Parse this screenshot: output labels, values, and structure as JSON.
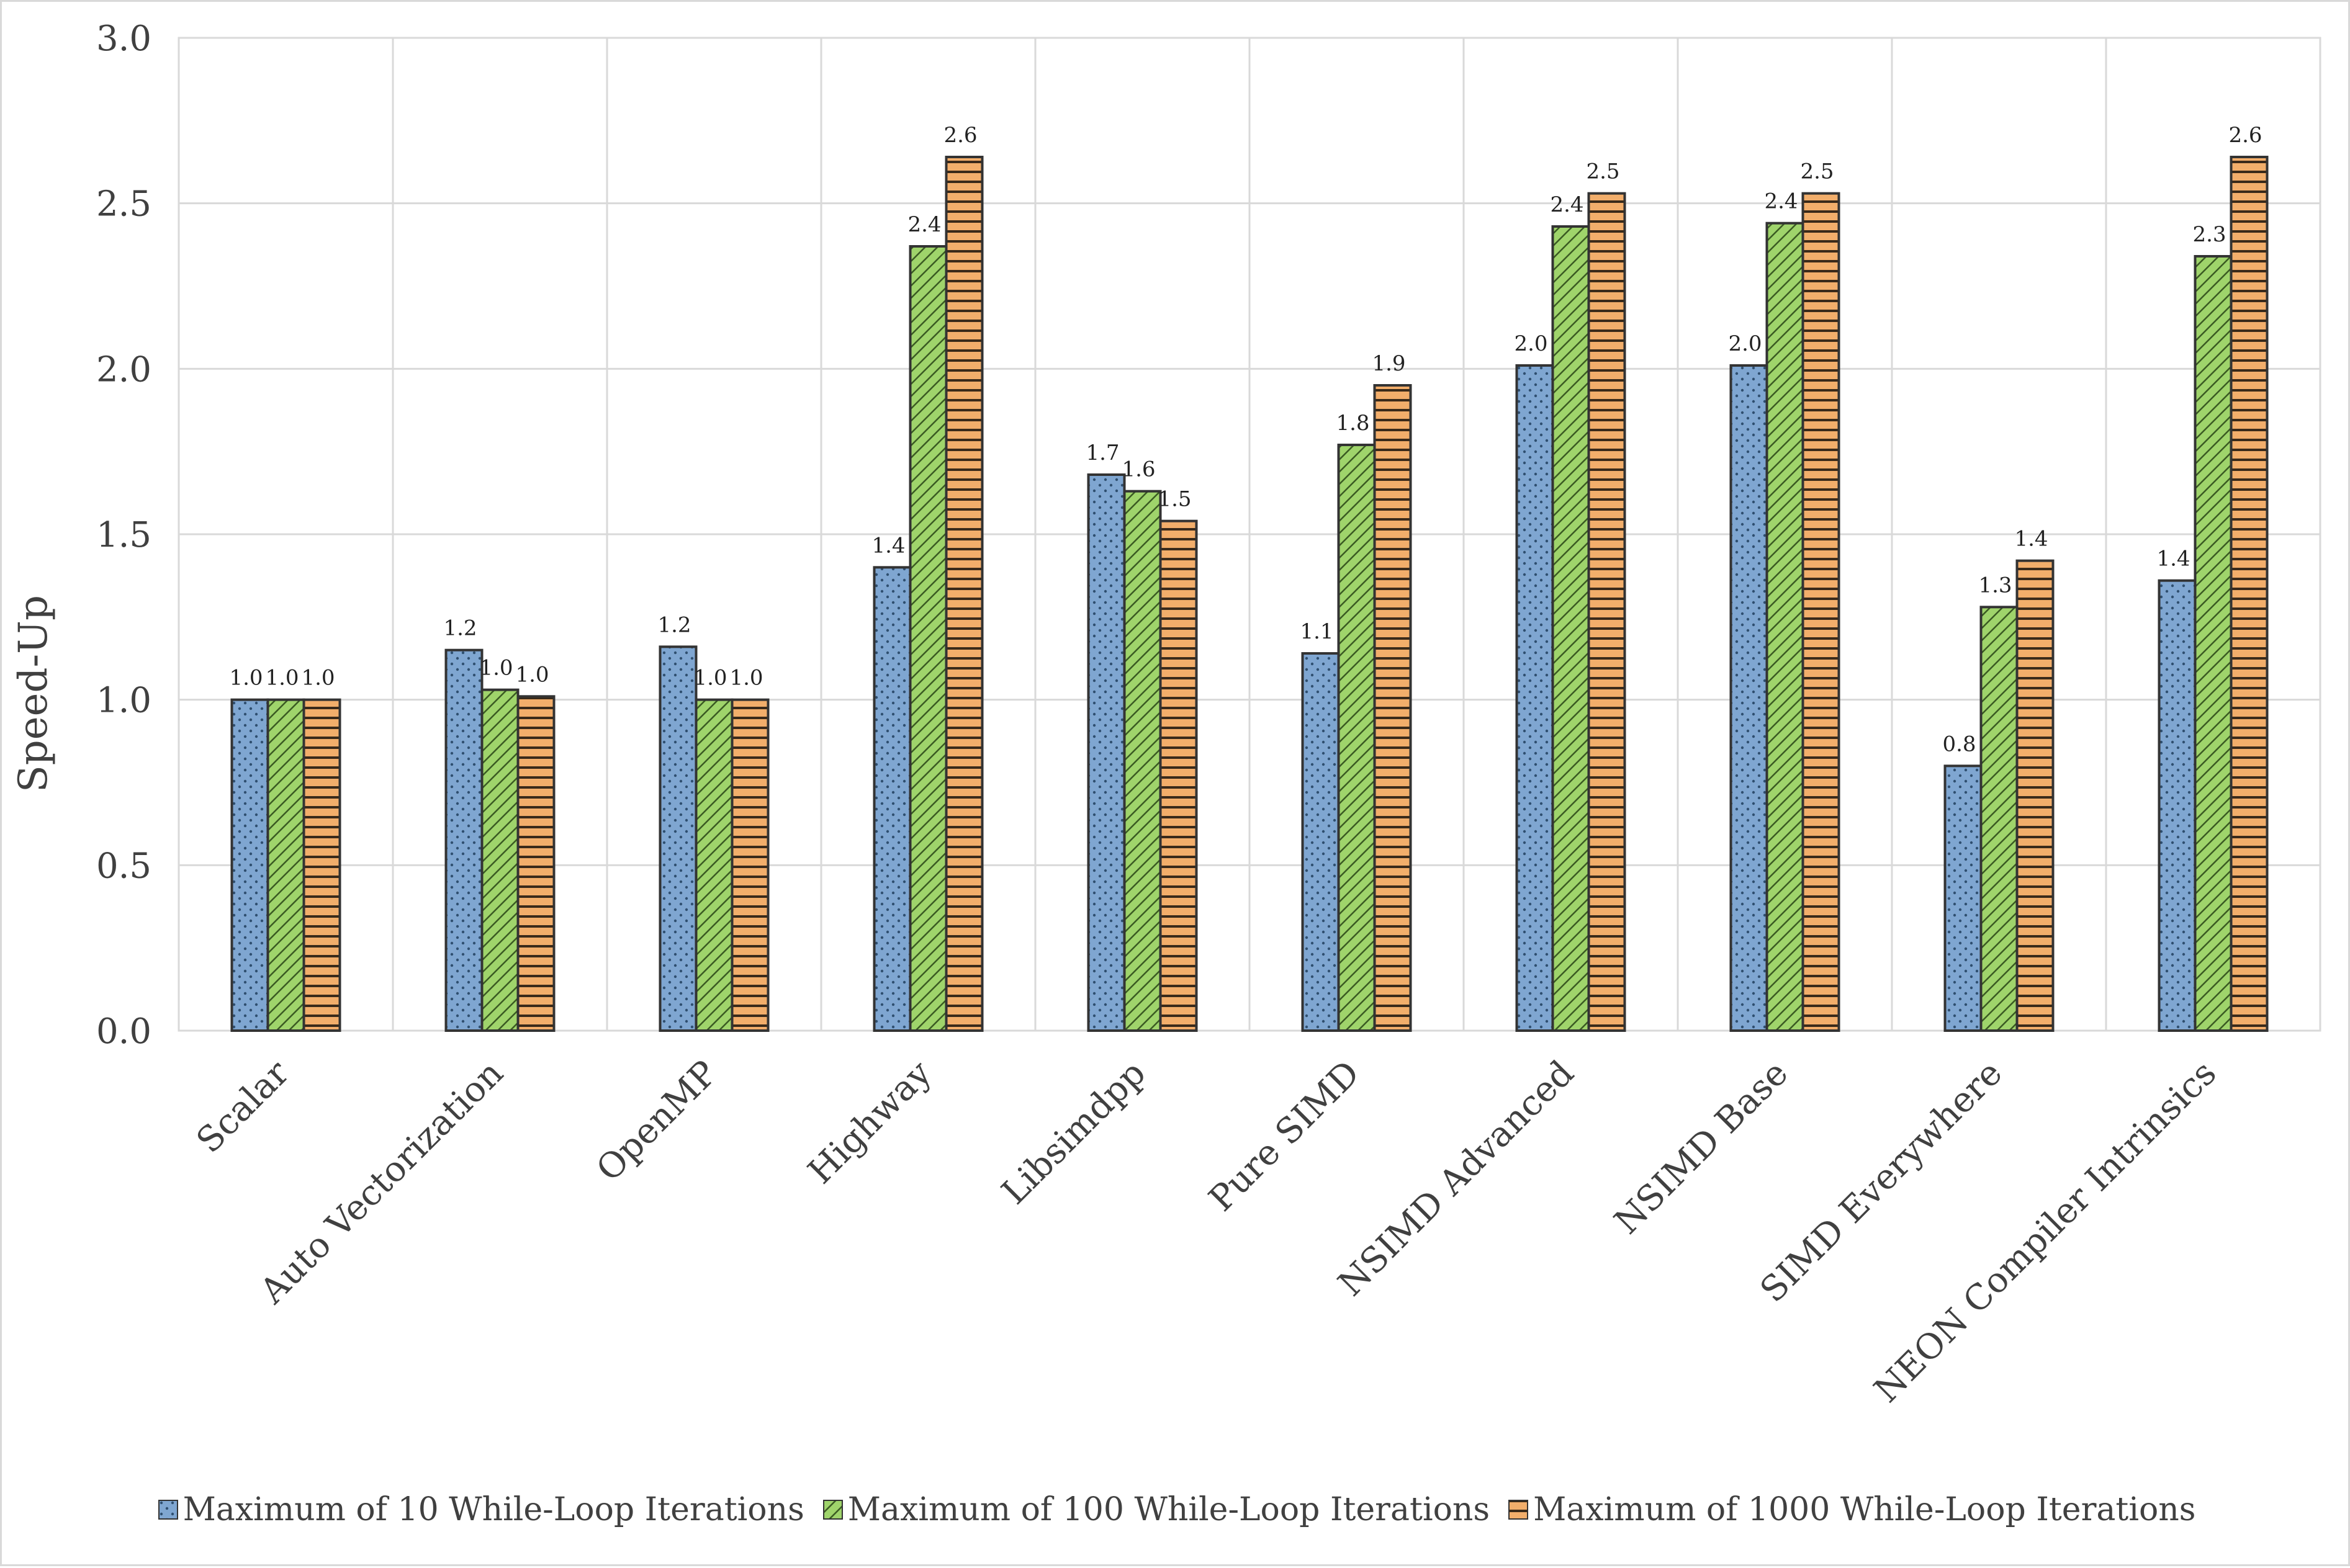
{
  "chart_data": {
    "type": "bar",
    "title": "",
    "xlabel": "",
    "ylabel": "Speed-Up",
    "ylim": [
      0,
      3.0
    ],
    "yticks": [
      "0.0",
      "0.5",
      "1.0",
      "1.5",
      "2.0",
      "2.5",
      "3.0"
    ],
    "grid": true,
    "legend_position": "bottom",
    "categories": [
      "Scalar",
      "Auto Vectorization",
      "OpenMP",
      "Highway",
      "Libsimdpp",
      "Pure SIMD",
      "NSIMD Advanced",
      "NSIMD Base",
      "SIMD Everywhere",
      "NEON Compiler Intrinsics"
    ],
    "series": [
      {
        "name": "Maximum of 10 While-Loop Iterations",
        "color": "#7fa6d1",
        "pattern": "dots",
        "values": [
          1.0,
          1.15,
          1.16,
          1.4,
          1.68,
          1.14,
          2.01,
          2.01,
          0.8,
          1.36
        ],
        "labels": [
          "1.0",
          "1.2",
          "1.2",
          "1.4",
          "1.7",
          "1.1",
          "2.0",
          "2.0",
          "0.8",
          "1.4"
        ]
      },
      {
        "name": "Maximum of 100 While-Loop Iterations",
        "color": "#9fd46b",
        "pattern": "diagonal",
        "values": [
          1.0,
          1.03,
          1.0,
          2.37,
          1.63,
          1.77,
          2.43,
          2.44,
          1.28,
          2.34
        ],
        "labels": [
          "1.0",
          "1.0",
          "1.0",
          "2.4",
          "1.6",
          "1.8",
          "2.4",
          "2.4",
          "1.3",
          "2.3"
        ]
      },
      {
        "name": "Maximum of 1000 While-Loop Iterations",
        "color": "#f2ae6b",
        "pattern": "horizontal",
        "values": [
          1.0,
          1.01,
          1.0,
          2.64,
          1.54,
          1.95,
          2.53,
          2.53,
          1.42,
          2.64
        ],
        "labels": [
          "1.0",
          "1.0",
          "1.0",
          "2.6",
          "1.5",
          "1.9",
          "2.5",
          "2.5",
          "1.4",
          "2.6"
        ]
      }
    ]
  }
}
